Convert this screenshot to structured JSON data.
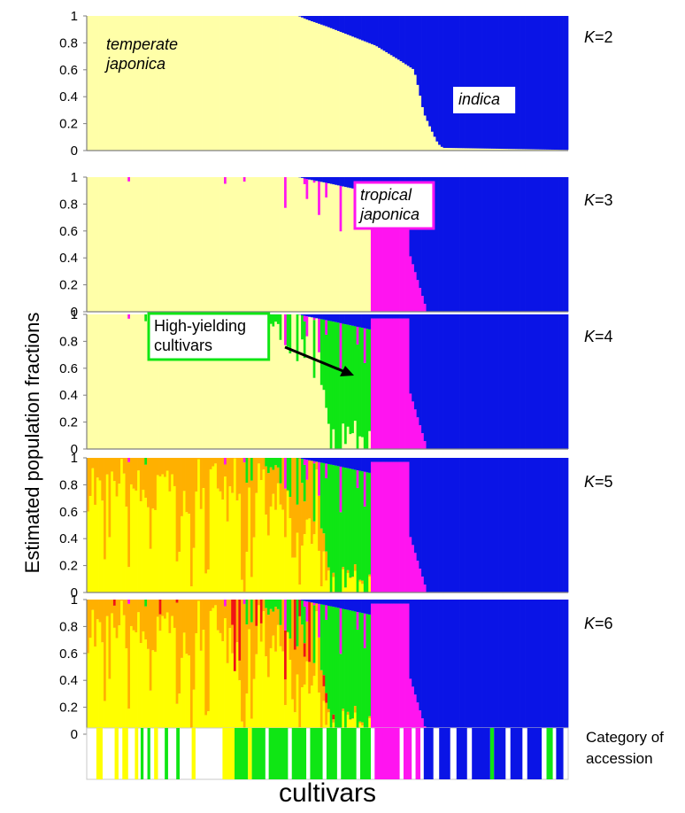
{
  "ylabel": "Estimated population fractions",
  "xlabel": "cultivars",
  "category_label": [
    "Category of",
    "accession"
  ],
  "yticks": [
    "0",
    "0.2",
    "0.4",
    "0.6",
    "0.8",
    "1"
  ],
  "colors": {
    "temperate_japonica": "#FFFFA8",
    "indica": "#0A14E6",
    "tropical_japonica": "#FF14F0",
    "high_yielding": "#0FE614",
    "yellow": "#FFFF00",
    "orange": "#FFB000",
    "red": "#F01414",
    "axis": "#7f7f7f"
  },
  "chart_data": [
    {
      "type": "stacked-bar",
      "panel_label": "K=2",
      "annotations": [
        {
          "lines": [
            "temperate",
            "japonica"
          ],
          "italic": true
        },
        {
          "lines": [
            "indica"
          ],
          "italic": true
        }
      ],
      "ylim": [
        0,
        1
      ],
      "series_order": [
        "temperate_japonica",
        "indica"
      ],
      "profile": {
        "indica": [
          [
            0.0,
            0.0
          ],
          [
            0.44,
            0.0
          ],
          [
            0.46,
            0.03
          ],
          [
            0.5,
            0.08
          ],
          [
            0.55,
            0.15
          ],
          [
            0.6,
            0.22
          ],
          [
            0.65,
            0.33
          ],
          [
            0.68,
            0.4
          ],
          [
            0.69,
            0.55
          ],
          [
            0.7,
            0.72
          ],
          [
            0.72,
            0.88
          ],
          [
            0.73,
            0.95
          ],
          [
            0.74,
            0.98
          ],
          [
            1.0,
            0.995
          ]
        ]
      }
    },
    {
      "type": "stacked-bar",
      "panel_label": "K=3",
      "annotations": [
        {
          "lines": [
            "tropical",
            "japonica"
          ],
          "italic": true
        }
      ],
      "ylim": [
        0,
        1
      ],
      "series_order": [
        "temperate_japonica",
        "tropical_japonica",
        "indica"
      ],
      "tropical_japonica_block": [
        0.59,
        0.67
      ]
    },
    {
      "type": "stacked-bar",
      "panel_label": "K=4",
      "annotations": [
        {
          "lines": [
            "High-yielding",
            "cultivars"
          ],
          "italic": false
        }
      ],
      "ylim": [
        0,
        1
      ],
      "series_order": [
        "temperate_japonica",
        "high_yielding",
        "tropical_japonica",
        "indica"
      ],
      "high_yielding_block": [
        0.5,
        0.59
      ]
    },
    {
      "type": "stacked-bar",
      "panel_label": "K=5",
      "ylim": [
        0,
        1
      ],
      "series_order": [
        "yellow",
        "orange",
        "high_yielding",
        "tropical_japonica",
        "indica"
      ]
    },
    {
      "type": "stacked-bar",
      "panel_label": "K=6",
      "ylim": [
        0,
        1
      ],
      "series_order": [
        "yellow",
        "orange",
        "red",
        "high_yielding",
        "tropical_japonica",
        "indica"
      ]
    }
  ],
  "category_strip": [
    {
      "from": 0.02,
      "to": 0.033,
      "series": "yellow"
    },
    {
      "from": 0.058,
      "to": 0.066,
      "series": "yellow"
    },
    {
      "from": 0.074,
      "to": 0.086,
      "series": "yellow"
    },
    {
      "from": 0.1,
      "to": 0.107,
      "series": "yellow"
    },
    {
      "from": 0.112,
      "to": 0.118,
      "series": "high_yielding"
    },
    {
      "from": 0.126,
      "to": 0.132,
      "series": "high_yielding"
    },
    {
      "from": 0.14,
      "to": 0.148,
      "series": "yellow"
    },
    {
      "from": 0.162,
      "to": 0.169,
      "series": "high_yielding"
    },
    {
      "from": 0.186,
      "to": 0.193,
      "series": "high_yielding"
    },
    {
      "from": 0.218,
      "to": 0.226,
      "series": "yellow"
    },
    {
      "from": 0.282,
      "to": 0.307,
      "series": "yellow"
    },
    {
      "from": 0.307,
      "to": 0.335,
      "series": "high_yielding"
    },
    {
      "from": 0.335,
      "to": 0.343,
      "series": "yellow"
    },
    {
      "from": 0.343,
      "to": 0.371,
      "series": "high_yielding"
    },
    {
      "from": 0.378,
      "to": 0.418,
      "series": "high_yielding"
    },
    {
      "from": 0.426,
      "to": 0.456,
      "series": "high_yielding"
    },
    {
      "from": 0.464,
      "to": 0.49,
      "series": "high_yielding"
    },
    {
      "from": 0.498,
      "to": 0.52,
      "series": "high_yielding"
    },
    {
      "from": 0.528,
      "to": 0.56,
      "series": "high_yielding"
    },
    {
      "from": 0.568,
      "to": 0.59,
      "series": "high_yielding"
    },
    {
      "from": 0.598,
      "to": 0.65,
      "series": "tropical_japonica"
    },
    {
      "from": 0.658,
      "to": 0.675,
      "series": "tropical_japonica"
    },
    {
      "from": 0.683,
      "to": 0.693,
      "series": "tropical_japonica"
    },
    {
      "from": 0.7,
      "to": 0.72,
      "series": "indica"
    },
    {
      "from": 0.732,
      "to": 0.755,
      "series": "indica"
    },
    {
      "from": 0.768,
      "to": 0.79,
      "series": "indica"
    },
    {
      "from": 0.8,
      "to": 0.838,
      "series": "indica"
    },
    {
      "from": 0.838,
      "to": 0.846,
      "series": "high_yielding"
    },
    {
      "from": 0.846,
      "to": 0.87,
      "series": "indica"
    },
    {
      "from": 0.88,
      "to": 0.905,
      "series": "indica"
    },
    {
      "from": 0.915,
      "to": 0.945,
      "series": "indica"
    },
    {
      "from": 0.955,
      "to": 0.968,
      "series": "high_yielding"
    },
    {
      "from": 0.975,
      "to": 0.99,
      "series": "indica"
    }
  ]
}
